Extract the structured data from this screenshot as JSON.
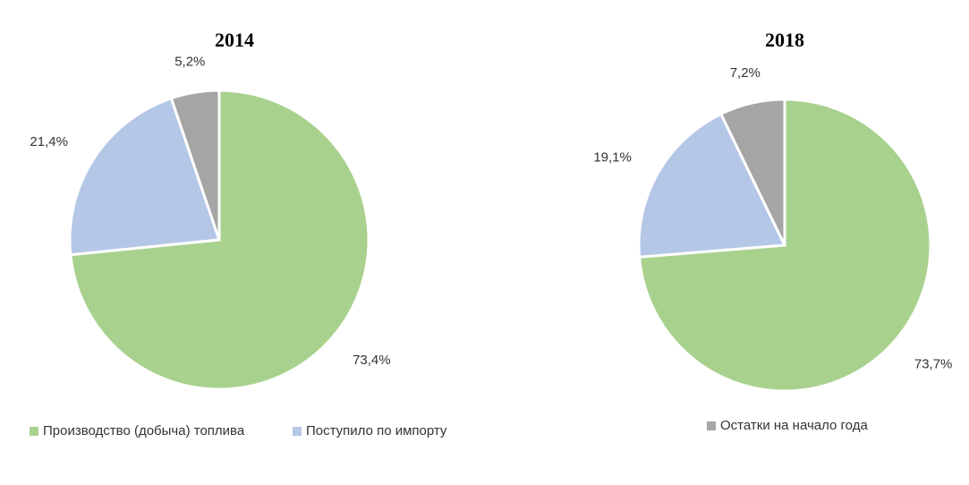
{
  "chart_data": [
    {
      "type": "pie",
      "title": "2014",
      "values": [
        73.4,
        21.4,
        5.2
      ],
      "value_labels": [
        "73,4%",
        "21,4%",
        "5,2%"
      ]
    },
    {
      "type": "pie",
      "title": "2018",
      "values": [
        73.7,
        19.1,
        7.2
      ],
      "value_labels": [
        "73,7%",
        "19,1%",
        "7,2%"
      ]
    }
  ],
  "legend": [
    {
      "name": "Производство (добыча) топлива",
      "color": "#a9d18e"
    },
    {
      "name": "Поступило по импорту",
      "color": "#b4c7e7"
    },
    {
      "name": "Остатки на начало года",
      "color": "#a5a5a5"
    }
  ]
}
